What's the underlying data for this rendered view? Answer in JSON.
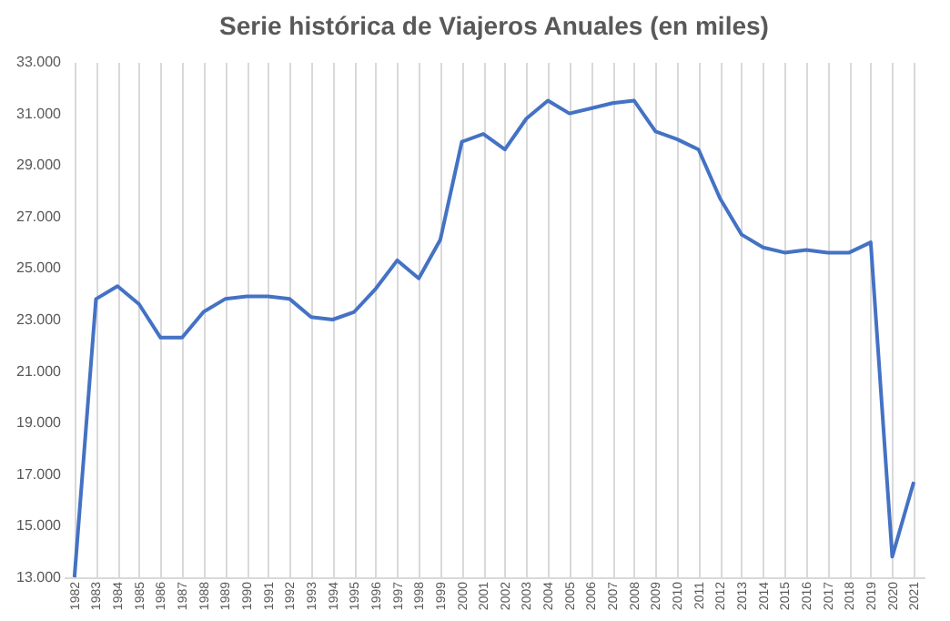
{
  "chart_data": {
    "type": "line",
    "title": "Serie histórica de Viajeros Anuales (en miles)",
    "categories": [
      "1982",
      "1983",
      "1984",
      "1985",
      "1986",
      "1987",
      "1988",
      "1989",
      "1990",
      "1991",
      "1992",
      "1993",
      "1994",
      "1995",
      "1996",
      "1997",
      "1998",
      "1999",
      "2000",
      "2001",
      "2002",
      "2003",
      "2004",
      "2005",
      "2006",
      "2007",
      "2008",
      "2009",
      "2010",
      "2011",
      "2012",
      "2013",
      "2014",
      "2015",
      "2016",
      "2017",
      "2018",
      "2019",
      "2020",
      "2021"
    ],
    "series": [
      {
        "color": "#4472c4",
        "values": [
          13000,
          23800,
          24300,
          23600,
          22300,
          22300,
          23300,
          23800,
          23900,
          23900,
          23800,
          23100,
          23000,
          23300,
          24200,
          25300,
          24600,
          26100,
          29900,
          30200,
          29600,
          30800,
          31500,
          31000,
          31200,
          31400,
          31500,
          30300,
          30000,
          29600,
          27700,
          26300,
          25800,
          25600,
          25700,
          25600,
          25600,
          26000,
          13800,
          16700
        ]
      }
    ],
    "ylim": [
      13000,
      33000
    ],
    "yticks": [
      {
        "value": 13000,
        "label": "13.000"
      },
      {
        "value": 15000,
        "label": "15.000"
      },
      {
        "value": 17000,
        "label": "17.000"
      },
      {
        "value": 19000,
        "label": "19.000"
      },
      {
        "value": 21000,
        "label": "21.000"
      },
      {
        "value": 23000,
        "label": "23.000"
      },
      {
        "value": 25000,
        "label": "25.000"
      },
      {
        "value": 27000,
        "label": "27.000"
      },
      {
        "value": 29000,
        "label": "29.000"
      },
      {
        "value": 31000,
        "label": "31.000"
      },
      {
        "value": 33000,
        "label": "33.000"
      }
    ],
    "grid": "x",
    "legend": false,
    "marker": "none",
    "line_style": "solid"
  }
}
